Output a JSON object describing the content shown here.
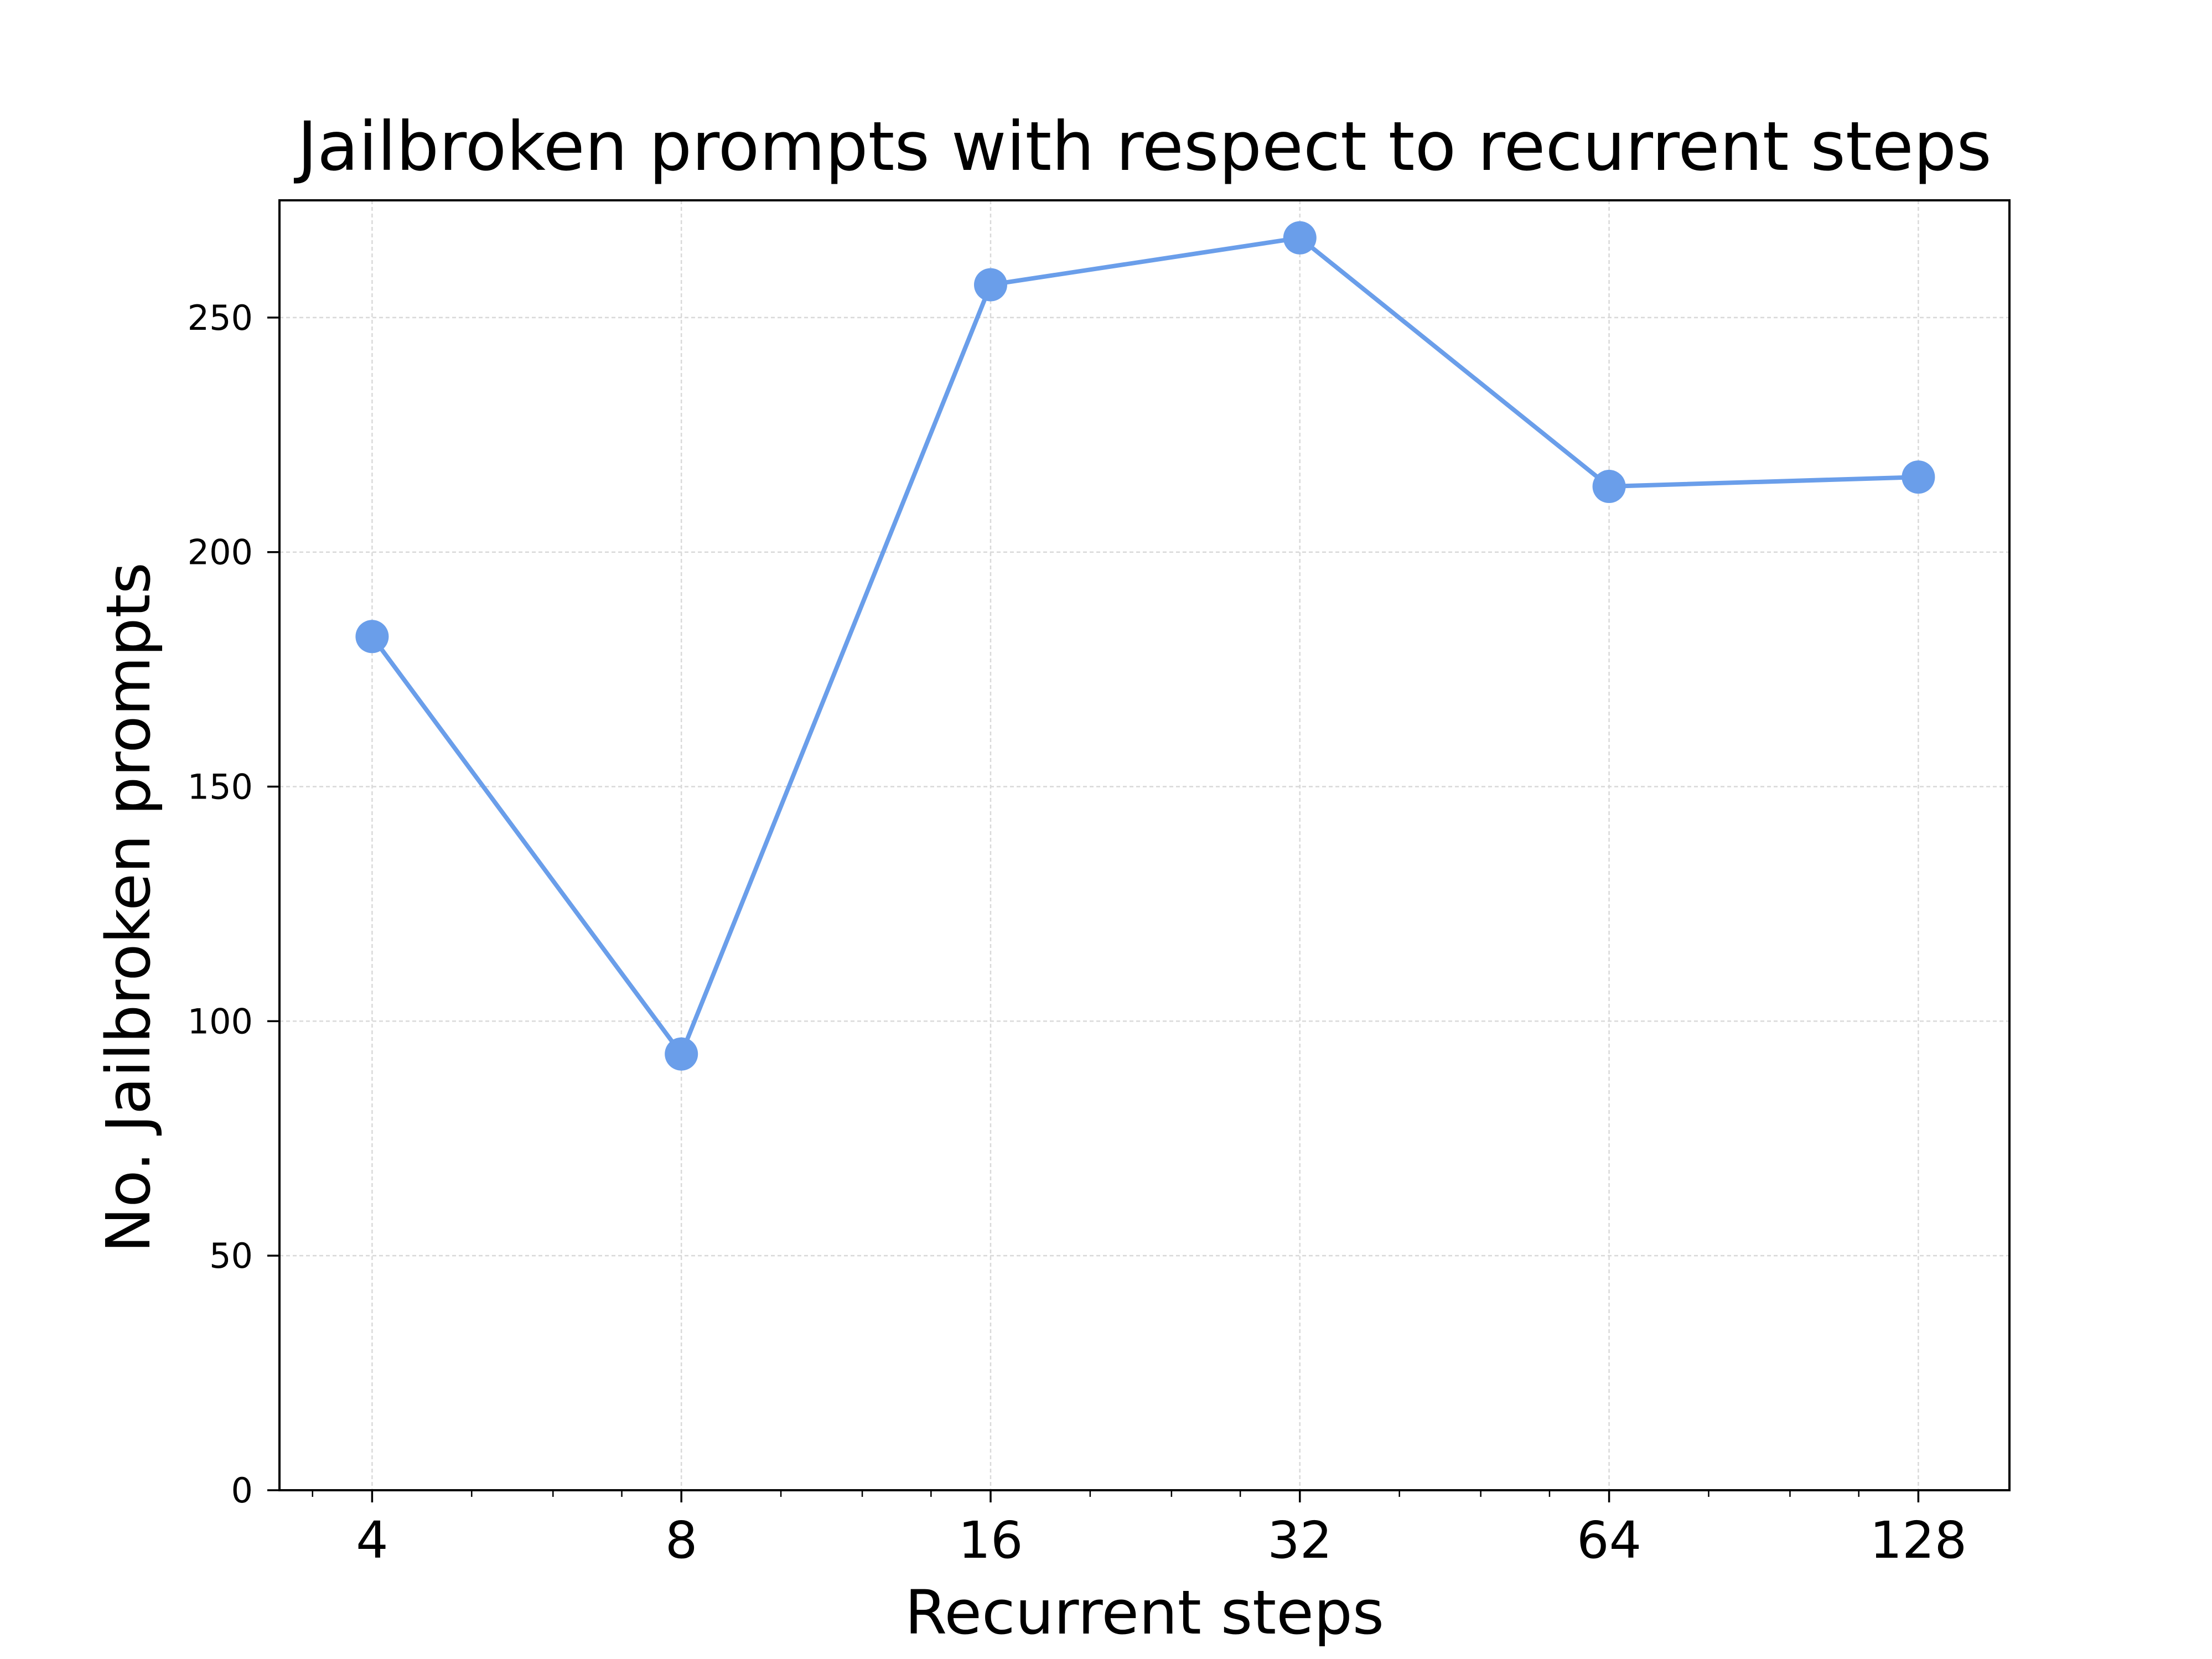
{
  "chart_data": {
    "type": "line",
    "title": "Jailbroken prompts with respect to recurrent steps",
    "xlabel": "Recurrent steps",
    "ylabel": "No. Jailbroken prompts",
    "x_scale": "log2",
    "x_ticks": [
      4,
      8,
      16,
      32,
      64,
      128
    ],
    "x_tick_labels": [
      "4",
      "8",
      "16",
      "32",
      "64",
      "128"
    ],
    "xlim": [
      3.25,
      157
    ],
    "y_ticks": [
      0,
      50,
      100,
      150,
      200,
      250
    ],
    "y_tick_labels": [
      "0",
      "50",
      "100",
      "150",
      "200",
      "250"
    ],
    "ylim": [
      0,
      275
    ],
    "grid": true,
    "series": [
      {
        "x": [
          4,
          8,
          16,
          32,
          64,
          128
        ],
        "values": [
          182,
          93,
          257,
          267,
          214,
          216
        ],
        "color": "#6a9eea",
        "marker": "circle"
      }
    ]
  }
}
